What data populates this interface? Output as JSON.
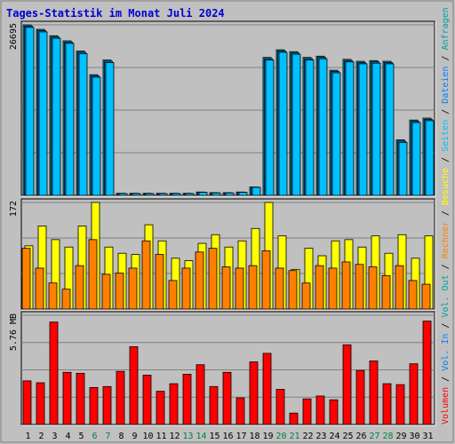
{
  "title": "Tages-Statistik im Monat Juli 2024",
  "colors": {
    "title": "#0000d0",
    "frame": "#808080",
    "panel_bg": "#c0c0c0",
    "grid": "#808080",
    "hits": "#00a0a0",
    "files": "#0080ff",
    "pages": "#00c0ff",
    "visits": "#ffff00",
    "sites": "#ff8000",
    "kbytes": "#ff0000",
    "weekend_day": "#008040",
    "weekday": "#000000"
  },
  "right_legend": {
    "top": [
      "Anfragen",
      "Dateien",
      "Seiten",
      "Besuche"
    ],
    "middle": [
      "Rechner",
      "Vol. Out",
      "Vol. In"
    ],
    "bottom": [
      "Volumen"
    ],
    "text": [
      "Volumen",
      "Vol. In",
      "Vol. Out",
      "Rechner",
      "Besuche",
      "Seiten",
      "Dateien",
      "Anfragen"
    ]
  },
  "chart_data": [
    {
      "type": "bar",
      "panel": "top",
      "y_max_label": "26695",
      "ylim": [
        0,
        26695
      ],
      "categories": [
        "1",
        "2",
        "3",
        "4",
        "5",
        "6",
        "7",
        "8",
        "9",
        "10",
        "11",
        "12",
        "13",
        "14",
        "15",
        "16",
        "17",
        "18",
        "19",
        "20",
        "21",
        "22",
        "23",
        "24",
        "25",
        "26",
        "27",
        "28",
        "29",
        "30",
        "31"
      ],
      "series": [
        {
          "name": "Anfragen",
          "values": [
            26695,
            25995,
            24995,
            24195,
            22595,
            18895,
            21195,
            320,
            320,
            320,
            320,
            320,
            320,
            520,
            420,
            420,
            520,
            1300,
            21595,
            22795,
            22495,
            21595,
            21795,
            19595,
            21295,
            20995,
            21095,
            20995,
            8695,
            11795,
            12095
          ]
        },
        {
          "name": "Dateien",
          "values": [
            26495,
            25795,
            24795,
            23995,
            22395,
            18695,
            20995,
            300,
            300,
            300,
            300,
            300,
            300,
            500,
            400,
            400,
            500,
            1280,
            21395,
            22595,
            22295,
            21395,
            21595,
            19395,
            21095,
            20795,
            20895,
            20795,
            8495,
            11595,
            11895
          ]
        },
        {
          "name": "Seiten",
          "values": [
            26295,
            25595,
            24595,
            23795,
            22195,
            18495,
            20795,
            280,
            280,
            280,
            280,
            280,
            280,
            480,
            380,
            380,
            480,
            1260,
            21195,
            22395,
            22095,
            21195,
            21395,
            19195,
            20895,
            20595,
            20695,
            20595,
            8295,
            11395,
            11695
          ]
        }
      ]
    },
    {
      "type": "bar",
      "panel": "middle",
      "y_max_label": "172",
      "ylim": [
        0,
        172
      ],
      "categories": [
        "1",
        "2",
        "3",
        "4",
        "5",
        "6",
        "7",
        "8",
        "9",
        "10",
        "11",
        "12",
        "13",
        "14",
        "15",
        "16",
        "17",
        "18",
        "19",
        "20",
        "21",
        "22",
        "23",
        "24",
        "25",
        "26",
        "27",
        "28",
        "29",
        "30",
        "31"
      ],
      "series": [
        {
          "name": "Besuche",
          "values": [
            102,
            134,
            112,
            100,
            134,
            172,
            100,
            90,
            88,
            136,
            110,
            82,
            78,
            106,
            120,
            100,
            110,
            130,
            172,
            118,
            64,
            98,
            86,
            110,
            112,
            100,
            118,
            90,
            120,
            82,
            118
          ]
        },
        {
          "name": "Rechner",
          "values": [
            98,
            66,
            42,
            32,
            70,
            112,
            56,
            58,
            66,
            110,
            88,
            46,
            66,
            92,
            98,
            68,
            66,
            70,
            94,
            66,
            62,
            42,
            70,
            66,
            76,
            72,
            68,
            54,
            70,
            46,
            40
          ]
        }
      ]
    },
    {
      "type": "bar",
      "panel": "bottom",
      "y_max_label": "5.76 MB",
      "ylim": [
        0,
        5.76
      ],
      "categories": [
        "1",
        "2",
        "3",
        "4",
        "5",
        "6",
        "7",
        "8",
        "9",
        "10",
        "11",
        "12",
        "13",
        "14",
        "15",
        "16",
        "17",
        "18",
        "19",
        "20",
        "21",
        "22",
        "23",
        "24",
        "25",
        "26",
        "27",
        "28",
        "29",
        "30",
        "31"
      ],
      "series": [
        {
          "name": "Volumen",
          "values": [
            2.3,
            2.2,
            5.4,
            2.75,
            2.7,
            1.95,
            2.0,
            2.8,
            4.1,
            2.6,
            1.75,
            2.15,
            2.65,
            3.15,
            2.0,
            2.75,
            1.4,
            3.3,
            3.75,
            1.85,
            0.6,
            1.35,
            1.5,
            1.3,
            4.2,
            2.85,
            3.35,
            2.15,
            2.1,
            3.2,
            5.45
          ]
        }
      ]
    }
  ]
}
